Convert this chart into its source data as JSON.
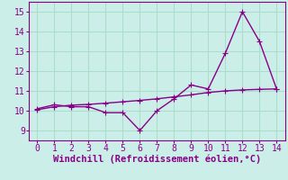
{
  "x": [
    0,
    1,
    2,
    3,
    4,
    5,
    6,
    7,
    8,
    9,
    10,
    11,
    12,
    13,
    14
  ],
  "y_actual": [
    10.1,
    10.3,
    10.2,
    10.2,
    9.9,
    9.9,
    9.0,
    10.0,
    10.6,
    11.3,
    11.1,
    12.9,
    15.0,
    13.5,
    11.1
  ],
  "y_trend": [
    10.05,
    10.2,
    10.28,
    10.32,
    10.38,
    10.45,
    10.52,
    10.6,
    10.7,
    10.8,
    10.92,
    11.0,
    11.05,
    11.08,
    11.1
  ],
  "line_color": "#880088",
  "bg_color": "#cceee8",
  "grid_color": "#aaddcc",
  "xlabel": "Windchill (Refroidissement éolien,°C)",
  "xlim": [
    -0.5,
    14.5
  ],
  "ylim": [
    8.5,
    15.5
  ],
  "yticks": [
    9,
    10,
    11,
    12,
    13,
    14,
    15
  ],
  "xticks": [
    0,
    1,
    2,
    3,
    4,
    5,
    6,
    7,
    8,
    9,
    10,
    11,
    12,
    13,
    14
  ],
  "xlabel_fontsize": 7.5,
  "tick_fontsize": 7,
  "marker_size": 2.5,
  "line_width": 1.0
}
